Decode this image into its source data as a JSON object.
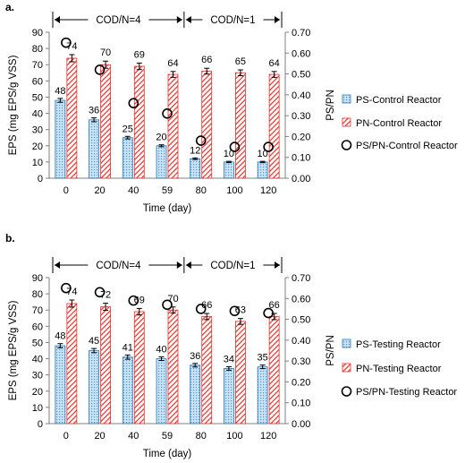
{
  "panels": [
    {
      "label": "a.",
      "phases": [
        "COD/N=4",
        "COD/N=1"
      ]
    },
    {
      "label": "b.",
      "phases": [
        "COD/N=4",
        "COD/N=1"
      ]
    }
  ],
  "colors": {
    "ps_fill": "#c9e3f4",
    "ps_stroke": "#2e75b6",
    "pn_fill": "#ffffff",
    "pn_hatch": "#e8302a",
    "circle": "#000000"
  },
  "chart_data": [
    {
      "type": "bar",
      "categories": [
        "0",
        "20",
        "40",
        "59",
        "80",
        "100",
        "120"
      ],
      "xlabel": "Time (day)",
      "ylabel": "EPS (mg EPS/g VSS)",
      "y2label": "PS/PN",
      "ylim": [
        0,
        90
      ],
      "yticks": [
        0,
        10,
        20,
        30,
        40,
        50,
        60,
        70,
        80,
        90
      ],
      "y2lim": [
        0,
        0.7
      ],
      "y2ticks": [
        "0.00",
        "0.10",
        "0.20",
        "0.30",
        "0.40",
        "0.50",
        "0.60",
        "0.70"
      ],
      "legend_position": "right",
      "series": [
        {
          "name": "PS-Control Reactor",
          "kind": "bar",
          "values": [
            48,
            36,
            25,
            20,
            12,
            10,
            10
          ],
          "errors": [
            1.2,
            1.2,
            0.8,
            0.6,
            0.5,
            0.4,
            0.4
          ]
        },
        {
          "name": "PN-Control Reactor",
          "kind": "bar",
          "values": [
            74,
            70,
            69,
            64,
            66,
            65,
            64
          ],
          "errors": [
            2.2,
            2.2,
            2.0,
            1.8,
            1.8,
            1.8,
            1.8
          ]
        },
        {
          "name": "PS/PN-Control Reactor",
          "kind": "circle",
          "axis": "right",
          "values": [
            0.65,
            0.52,
            0.36,
            0.31,
            0.18,
            0.15,
            0.15
          ]
        }
      ],
      "labels": {
        "ps": [
          "48",
          "36",
          "25",
          "20",
          "12",
          "10",
          "10"
        ],
        "pn": [
          "74",
          "70",
          "69",
          "64",
          "66",
          "65",
          "64"
        ]
      }
    },
    {
      "type": "bar",
      "categories": [
        "0",
        "20",
        "40",
        "59",
        "80",
        "100",
        "120"
      ],
      "xlabel": "Time (day)",
      "ylabel": "EPS (mg EPS/g VSS)",
      "y2label": "PS/PN",
      "ylim": [
        0,
        90
      ],
      "yticks": [
        0,
        10,
        20,
        30,
        40,
        50,
        60,
        70,
        80,
        90
      ],
      "y2lim": [
        0,
        0.7
      ],
      "y2ticks": [
        "0.00",
        "0.10",
        "0.20",
        "0.30",
        "0.40",
        "0.50",
        "0.60",
        "0.70"
      ],
      "legend_position": "right",
      "series": [
        {
          "name": "PS-Testing Reactor",
          "kind": "bar",
          "values": [
            48,
            45,
            41,
            40,
            36,
            34,
            35
          ],
          "errors": [
            1.3,
            1.3,
            1.3,
            1.1,
            1.1,
            1.1,
            1.1
          ]
        },
        {
          "name": "PN-Testing Reactor",
          "kind": "bar",
          "values": [
            74,
            72,
            69,
            70,
            66,
            63,
            66
          ],
          "errors": [
            2.2,
            2.2,
            2.0,
            1.9,
            1.9,
            1.8,
            1.9
          ]
        },
        {
          "name": "PS/PN-Testing Reactor",
          "kind": "circle",
          "axis": "right",
          "values": [
            0.65,
            0.63,
            0.59,
            0.57,
            0.55,
            0.54,
            0.53
          ]
        }
      ],
      "labels": {
        "ps": [
          "48",
          "45",
          "41",
          "40",
          "36",
          "34",
          "35"
        ],
        "pn": [
          "74",
          "72",
          "69",
          "70",
          "66",
          "63",
          "66"
        ]
      }
    }
  ]
}
